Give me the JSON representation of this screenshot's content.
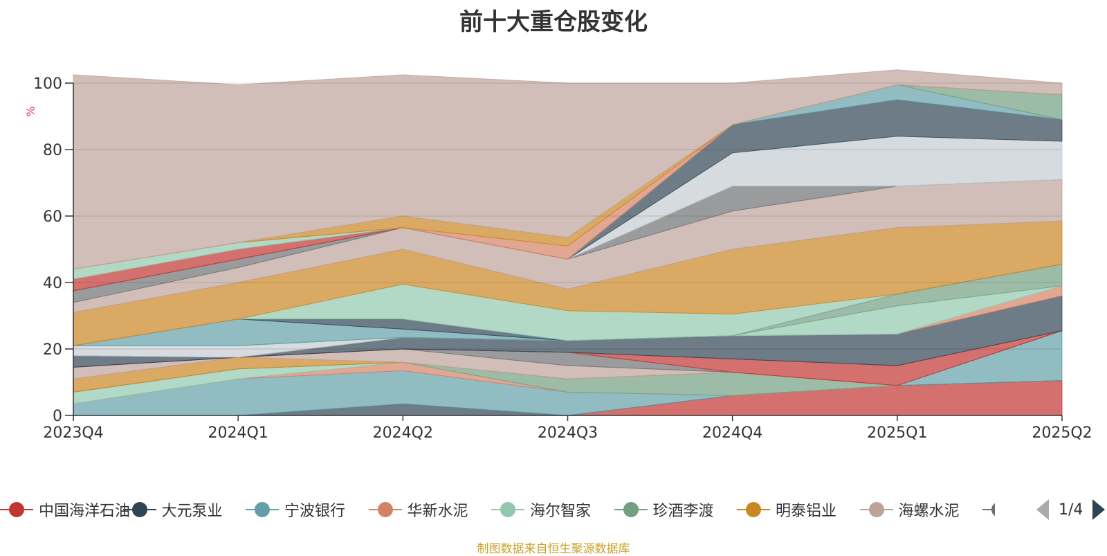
{
  "chart_data": {
    "type": "area",
    "stacked": true,
    "title": "前十大重仓股变化",
    "ylabel": "%",
    "ylim": [
      0,
      100
    ],
    "yticks": [
      0,
      20,
      40,
      60,
      80,
      100
    ],
    "grid": true,
    "categories": [
      "2023Q4",
      "2024Q1",
      "2024Q2",
      "2024Q3",
      "2024Q4",
      "2025Q1",
      "2025Q2"
    ],
    "series": [
      {
        "name": "中国海洋石油",
        "color": "#c23531",
        "values": [
          0,
          0,
          0,
          0,
          6,
          9,
          10.5
        ]
      },
      {
        "name": "大元泵业",
        "color": "#2f4554",
        "values": [
          0,
          0,
          3.5,
          0,
          0,
          0,
          0
        ]
      },
      {
        "name": "宁波银行",
        "color": "#61a0a8",
        "values": [
          3.5,
          11,
          10,
          7,
          0,
          0,
          15
        ]
      },
      {
        "name": "华新水泥",
        "color": "#d48265",
        "values": [
          0,
          0,
          2.5,
          0,
          0,
          0,
          0
        ]
      },
      {
        "name": "海尔智家",
        "color": "#91c7ae",
        "values": [
          3.5,
          3,
          0,
          0,
          0,
          0,
          0
        ]
      },
      {
        "name": "珍酒李渡",
        "color": "#749f83",
        "values": [
          0,
          0,
          0,
          4,
          7,
          0,
          0
        ]
      },
      {
        "name": "明泰铝业",
        "color": "#ca8622",
        "values": [
          4,
          3.5,
          0,
          0,
          0,
          0,
          0
        ]
      },
      {
        "name": "海螺水泥",
        "color": "#bda29a",
        "values": [
          3.5,
          0,
          4,
          4,
          0,
          0,
          0
        ]
      },
      {
        "name": "",
        "color": "#6e7074",
        "values": [
          0,
          0,
          0,
          4,
          0,
          0,
          0
        ]
      },
      {
        "name": "",
        "color": "#c23531",
        "values": [
          0,
          0,
          0,
          0,
          4,
          6,
          0
        ]
      },
      {
        "name": "",
        "color": "#2f4554",
        "values": [
          3.5,
          0,
          3.5,
          3.5,
          7,
          9.5,
          10.5
        ]
      },
      {
        "name": "",
        "color": "#d48265",
        "values": [
          0,
          0,
          0,
          0,
          0,
          0,
          3
        ]
      },
      {
        "name": "",
        "color": "#c4ccd3",
        "values": [
          3,
          3.5,
          0,
          0,
          0,
          0,
          0
        ]
      },
      {
        "name": "",
        "color": "#91c7ae",
        "values": [
          0,
          0,
          0,
          0,
          0,
          8.5,
          0
        ]
      },
      {
        "name": "",
        "color": "#749f83",
        "values": [
          0,
          0,
          0,
          0,
          0,
          3.5,
          6.5
        ]
      },
      {
        "name": "",
        "color": "#61a0a8",
        "values": [
          0,
          8,
          2.5,
          0,
          0,
          0,
          0
        ]
      },
      {
        "name": "",
        "color": "#2f4554",
        "values": [
          0,
          0,
          3,
          0,
          0,
          0,
          0
        ]
      },
      {
        "name": "",
        "color": "#91c7ae",
        "values": [
          0,
          0,
          10.5,
          9,
          6.5,
          0,
          0
        ]
      },
      {
        "name": "",
        "color": "#ca8622",
        "values": [
          10,
          11,
          10.5,
          6.5,
          19.5,
          20,
          13
        ]
      },
      {
        "name": "",
        "color": "#bda29a",
        "values": [
          3,
          4.5,
          6.5,
          9,
          11.5,
          12.5,
          12.5
        ]
      },
      {
        "name": "",
        "color": "#6e7074",
        "values": [
          3.5,
          2.5,
          0,
          0,
          7.5,
          0,
          0
        ]
      },
      {
        "name": "",
        "color": "#c4ccd3",
        "values": [
          0,
          0,
          0,
          0,
          10,
          15,
          11.5
        ]
      },
      {
        "name": "",
        "color": "#2f4554",
        "values": [
          0,
          0,
          0,
          0,
          8.5,
          11,
          6.5
        ]
      },
      {
        "name": "",
        "color": "#61a0a8",
        "values": [
          0,
          0,
          0,
          0,
          0,
          4.5,
          0
        ]
      },
      {
        "name": "",
        "color": "#749f83",
        "values": [
          0,
          0,
          0,
          0,
          0,
          0,
          7.5
        ]
      },
      {
        "name": "",
        "color": "#c23531",
        "values": [
          3.5,
          3,
          0,
          0,
          0,
          0,
          0
        ]
      },
      {
        "name": "",
        "color": "#91c7ae",
        "values": [
          3,
          2,
          0,
          0,
          0,
          0,
          0
        ]
      },
      {
        "name": "",
        "color": "#d48265",
        "values": [
          0,
          0,
          0,
          4,
          0,
          0,
          0
        ]
      },
      {
        "name": "",
        "color": "#ca8622",
        "values": [
          0,
          0,
          3.5,
          2.5,
          0,
          0,
          0
        ]
      },
      {
        "name": "",
        "color": "#bda29a",
        "values": [
          58.5,
          47.5,
          42.5,
          46.5,
          12.5,
          4.5,
          3.5
        ]
      }
    ]
  },
  "legend": {
    "page": "1/4"
  },
  "source": "制图数据来自恒生聚源数据库"
}
